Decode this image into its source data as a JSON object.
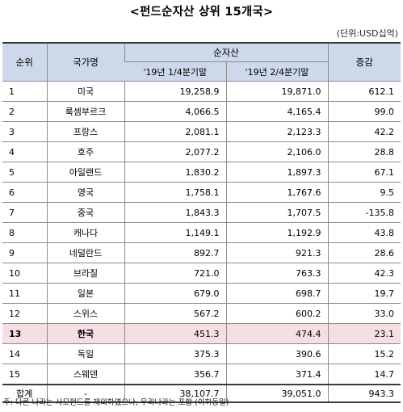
{
  "title": "<펀드순자산 상위 15개국>",
  "unit": "(단위:USD십억)",
  "headers": {
    "rank": "순위",
    "country": "국가명",
    "net_assets": "순자산",
    "q1": "'19년 1/4분기말",
    "q2": "'19년 2/4분기말",
    "change": "증감"
  },
  "rows": [
    {
      "rank": "1",
      "country": "미국",
      "q1": "19,258.9",
      "q2": "19,871.0",
      "change": "612.1"
    },
    {
      "rank": "2",
      "country": "룩셈부르크",
      "q1": "4,066.5",
      "q2": "4,165.4",
      "change": "99.0"
    },
    {
      "rank": "3",
      "country": "프랑스",
      "q1": "2,081.1",
      "q2": "2,123.3",
      "change": "42.2"
    },
    {
      "rank": "4",
      "country": "호주",
      "q1": "2,077.2",
      "q2": "2,106.0",
      "change": "28.8"
    },
    {
      "rank": "5",
      "country": "아일랜드",
      "q1": "1,830.2",
      "q2": "1,897.3",
      "change": "67.1"
    },
    {
      "rank": "6",
      "country": "영국",
      "q1": "1,758.1",
      "q2": "1,767.6",
      "change": "9.5"
    },
    {
      "rank": "7",
      "country": "중국",
      "q1": "1,843.3",
      "q2": "1,707.5",
      "change": "-135.8"
    },
    {
      "rank": "8",
      "country": "캐나다",
      "q1": "1,149.1",
      "q2": "1,192.9",
      "change": "43.8"
    },
    {
      "rank": "9",
      "country": "네덜란드",
      "q1": "892.7",
      "q2": "921.3",
      "change": "28.6"
    },
    {
      "rank": "10",
      "country": "브라질",
      "q1": "721.0",
      "q2": "763.3",
      "change": "42.3"
    },
    {
      "rank": "11",
      "country": "일본",
      "q1": "679.0",
      "q2": "698.7",
      "change": "19.7"
    },
    {
      "rank": "12",
      "country": "스위스",
      "q1": "567.2",
      "q2": "600.2",
      "change": "33.0"
    },
    {
      "rank": "13",
      "country": "한국",
      "q1": "451.3",
      "q2": "474.4",
      "change": "23.1",
      "highlight": true
    },
    {
      "rank": "14",
      "country": "독일",
      "q1": "375.3",
      "q2": "390.6",
      "change": "15.2"
    },
    {
      "rank": "15",
      "country": "스웨덴",
      "q1": "356.7",
      "q2": "371.4",
      "change": "14.7"
    }
  ],
  "total": {
    "label": "합계",
    "country": "-",
    "q1": "38,107.7",
    "q2": "39,051.0",
    "change": "943.3"
  },
  "colors": {
    "header_bg": "#cdd8ea",
    "highlight_bg": "#f6dfe3"
  },
  "note": "주: 다른 나라는 사모펀드를 제외하였으나, 우리나라는 포함 (이하동일)"
}
